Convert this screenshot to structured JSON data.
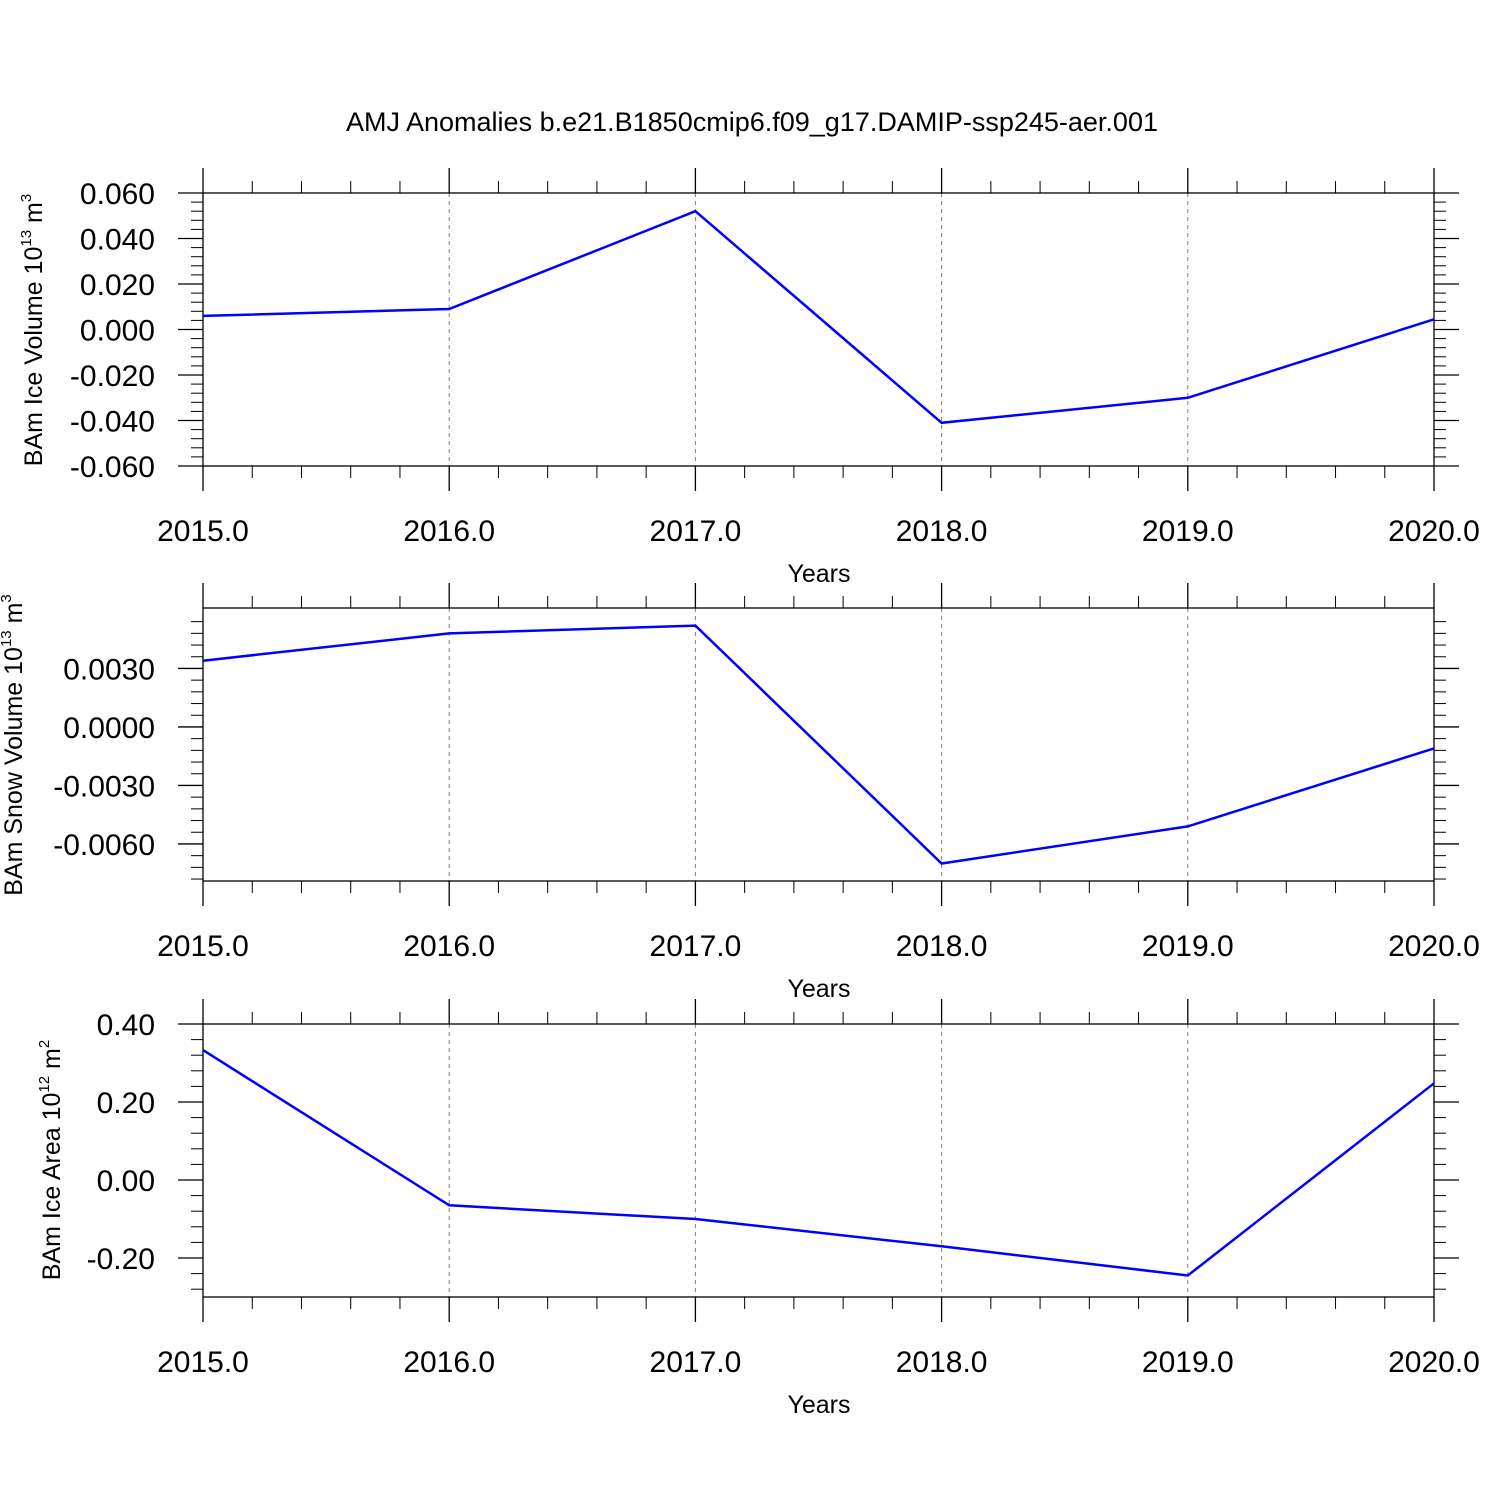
{
  "title": "AMJ Anomalies b.e21.B1850cmip6.f09_g17.DAMIP-ssp245-aer.001",
  "colors": {
    "line": "#0000ff",
    "axis": "#000000",
    "grid": "#808080"
  },
  "chart_data": [
    {
      "type": "line",
      "ylabel": {
        "main": "BAm Ice Volume 10",
        "exp": "13",
        "unit": " m",
        "unit_exp": "3"
      },
      "xlabel": "Years",
      "xlim": [
        2015,
        2020
      ],
      "ylim": [
        -0.06,
        0.06
      ],
      "x": [
        2015,
        2016,
        2017,
        2018,
        2019,
        2020
      ],
      "values": [
        0.006,
        0.009,
        0.052,
        -0.041,
        -0.03,
        0.0045
      ],
      "yticks": [
        0.06,
        0.04,
        0.02,
        0.0,
        -0.02,
        -0.04,
        -0.06
      ],
      "ytick_labels": [
        "0.060",
        "0.040",
        "0.020",
        "0.000",
        "-0.020",
        "-0.040",
        "-0.060"
      ],
      "xtick_labels": [
        "2015.0",
        "2016.0",
        "2017.0",
        "2018.0",
        "2019.0",
        "2020.0"
      ],
      "grid": "vertical-dashed"
    },
    {
      "type": "line",
      "ylabel": {
        "main": "BAm Snow Volume 10",
        "exp": "13",
        "unit": " m",
        "unit_exp": "3"
      },
      "xlabel": "Years",
      "xlim": [
        2015,
        2020
      ],
      "ylim": [
        -0.0079,
        0.0061
      ],
      "x": [
        2015,
        2016,
        2017,
        2018,
        2019,
        2020
      ],
      "values": [
        0.0034,
        0.0048,
        0.0052,
        -0.007,
        -0.0051,
        -0.0011
      ],
      "yticks": [
        0.003,
        0.0,
        -0.003,
        -0.006
      ],
      "ytick_labels": [
        "0.0030",
        "0.0000",
        "-0.0030",
        "-0.0060"
      ],
      "xtick_labels": [
        "2015.0",
        "2016.0",
        "2017.0",
        "2018.0",
        "2019.0",
        "2020.0"
      ],
      "grid": "vertical-dashed"
    },
    {
      "type": "line",
      "ylabel": {
        "main": "BAm Ice Area 10",
        "exp": "12",
        "unit": " m",
        "unit_exp": "2"
      },
      "xlabel": "Years",
      "xlim": [
        2015,
        2020
      ],
      "ylim": [
        -0.3,
        0.4
      ],
      "x": [
        2015,
        2016,
        2017,
        2018,
        2019,
        2020
      ],
      "values": [
        0.333,
        -0.065,
        -0.1,
        -0.17,
        -0.245,
        0.248
      ],
      "yticks": [
        0.4,
        0.2,
        0.0,
        -0.2
      ],
      "ytick_labels": [
        "0.40",
        "0.20",
        "0.00",
        "-0.20"
      ],
      "xtick_labels": [
        "2015.0",
        "2016.0",
        "2017.0",
        "2018.0",
        "2019.0",
        "2020.0"
      ],
      "grid": "vertical-dashed"
    }
  ]
}
